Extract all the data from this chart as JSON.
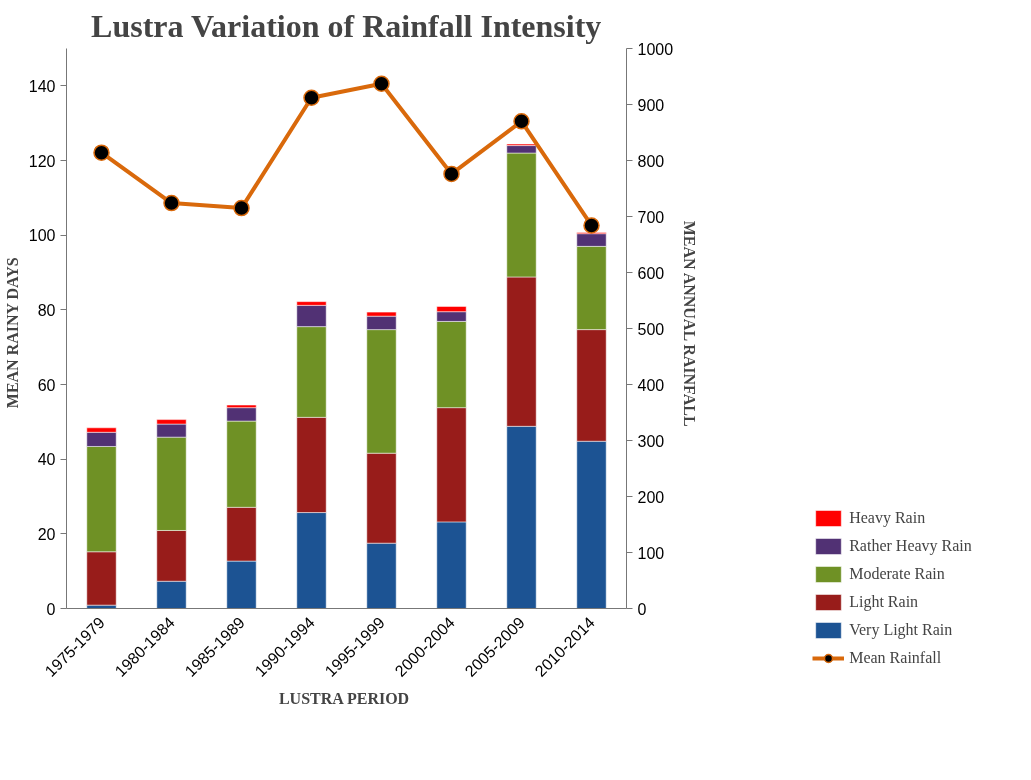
{
  "chart_data": {
    "type": "bar",
    "stacked": true,
    "title": "Lustra Variation of Rainfall Intensity",
    "xlabel": "LUSTRA  PERIOD",
    "ylabel": "MEAN  RAINY  DAYS",
    "y2label": "MEAN  ANNUAL  RAINFALL",
    "categories": [
      "1975-1979",
      "1980-1984",
      "1985-1989",
      "1990-1994",
      "1995-1999",
      "2000-2004",
      "2005-2009",
      "2010-2014"
    ],
    "series": [
      {
        "name": "Very Light Rain",
        "color": "#1c5393",
        "values": [
          0.9,
          7.3,
          12.7,
          25.7,
          17.5,
          23.2,
          48.8,
          44.8
        ]
      },
      {
        "name": "Light Rain",
        "color": "#981c1a",
        "values": [
          14.3,
          13.6,
          14.4,
          25.5,
          24.1,
          30.6,
          40.0,
          29.9
        ]
      },
      {
        "name": "Moderate Rain",
        "color": "#6f9125",
        "values": [
          28.2,
          25.0,
          23.1,
          24.3,
          33.1,
          23.1,
          33.2,
          22.3
        ]
      },
      {
        "name": "Rather Heavy Rain",
        "color": "#513174",
        "values": [
          3.8,
          3.5,
          3.6,
          5.7,
          3.6,
          2.6,
          2.0,
          3.4
        ]
      },
      {
        "name": "Heavy Rain",
        "color": "#ff0000",
        "values": [
          1.2,
          1.2,
          0.7,
          1.0,
          1.1,
          1.4,
          0.4,
          0.3
        ]
      },
      {
        "name": "Mean Rainfall",
        "type": "line",
        "axis": "y2",
        "marker": "circle",
        "color": "#d9690b",
        "values": [
          814,
          724,
          715,
          912,
          937,
          776,
          870,
          684
        ]
      }
    ],
    "ylim": [
      0,
      150
    ],
    "yticks": [
      0,
      20,
      40,
      60,
      80,
      100,
      120,
      140
    ],
    "y2lim": [
      0,
      1000
    ],
    "y2ticks": [
      0,
      100,
      200,
      300,
      400,
      500,
      600,
      700,
      800,
      900,
      1000
    ],
    "legend": "bottom right"
  }
}
